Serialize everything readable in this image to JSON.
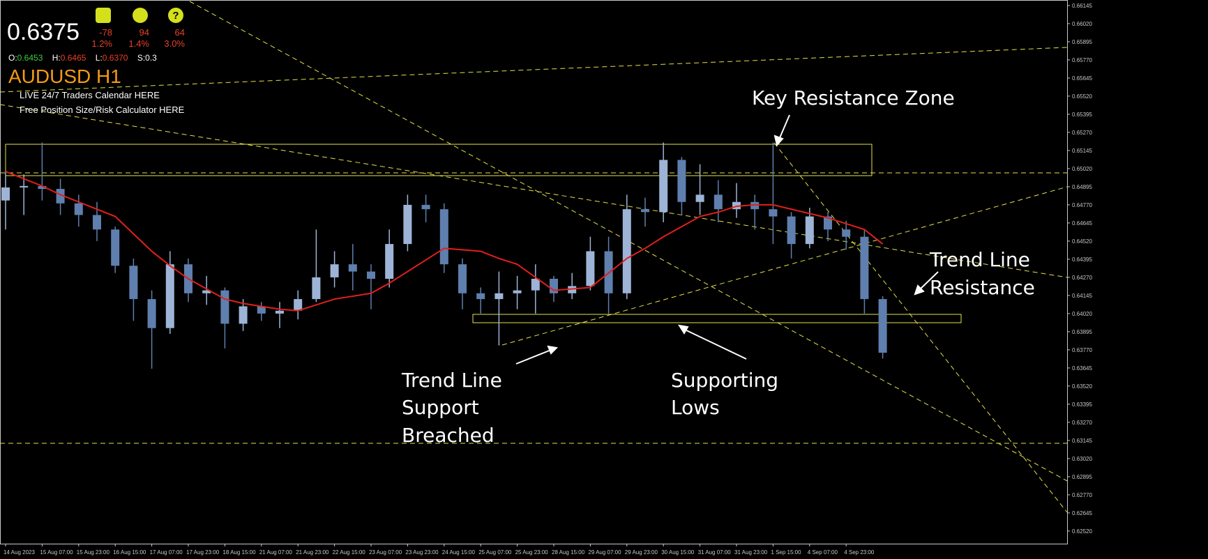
{
  "header": {
    "price": "0.6375",
    "stats": [
      {
        "points": "-78",
        "pct": "1.2%"
      },
      {
        "points": "94",
        "pct": "1.4%"
      },
      {
        "points": "64",
        "pct": "3.0%"
      }
    ],
    "open_label": "O:",
    "open": "0.6453",
    "high_label": "H:",
    "high": "0.6465",
    "low_label": "L:",
    "low": "0.6370",
    "spread_label": "S:",
    "spread": "0.3",
    "symbol": "AUDUSD H1",
    "links": [
      "LIVE 24/7 Traders Calendar HERE",
      "Free Position Size/Risk Calculator HERE"
    ]
  },
  "chart_data": {
    "type": "candlestick",
    "categories": [
      "14 Aug 2023",
      null,
      "15 Aug 07:00",
      null,
      "15 Aug 23:00",
      null,
      "16 Aug 15:00",
      null,
      "17 Aug 07:00",
      null,
      "17 Aug 23:00",
      null,
      "18 Aug 15:00",
      null,
      "21 Aug 07:00",
      null,
      "21 Aug 23:00",
      null,
      "22 Aug 15:00",
      null,
      "23 Aug 07:00",
      null,
      "23 Aug 23:00",
      null,
      "24 Aug 15:00",
      null,
      "25 Aug 07:00",
      null,
      "25 Aug 23:00",
      null,
      "28 Aug 15:00",
      null,
      "29 Aug 07:00",
      null,
      "29 Aug 23:00",
      null,
      "30 Aug 15:00",
      null,
      "31 Aug 07:00",
      null,
      "31 Aug 23:00",
      null,
      "1 Sep 15:00",
      null,
      "4 Sep 07:00",
      null,
      "4 Sep 23:00",
      null,
      null
    ],
    "open": [
      0.648,
      0.6489,
      0.649,
      0.6488,
      0.6478,
      0.647,
      0.646,
      0.6435,
      0.6412,
      0.6392,
      0.6436,
      0.6416,
      0.6418,
      0.6395,
      0.6407,
      0.6402,
      0.6404,
      0.6412,
      0.6427,
      0.6436,
      0.6431,
      0.6426,
      0.645,
      0.6477,
      0.6474,
      0.6436,
      0.6416,
      0.6412,
      0.6416,
      0.6418,
      0.6426,
      0.6416,
      0.6421,
      0.6445,
      0.6416,
      0.6474,
      0.6472,
      0.6508,
      0.6479,
      0.6484,
      0.6474,
      0.6479,
      0.6474,
      0.6469,
      0.645,
      0.6469,
      0.646,
      0.6455,
      0.6412
    ],
    "high": [
      0.65,
      0.6498,
      0.652,
      0.6495,
      0.6484,
      0.6479,
      0.6462,
      0.644,
      0.6418,
      0.6445,
      0.644,
      0.6428,
      0.642,
      0.6412,
      0.641,
      0.641,
      0.6418,
      0.646,
      0.6445,
      0.645,
      0.6436,
      0.646,
      0.6484,
      0.6484,
      0.6478,
      0.644,
      0.642,
      0.6431,
      0.6428,
      0.6436,
      0.6428,
      0.643,
      0.6455,
      0.6455,
      0.6484,
      0.6482,
      0.652,
      0.651,
      0.6505,
      0.6494,
      0.6492,
      0.6484,
      0.652,
      0.6472,
      0.6475,
      0.6472,
      0.6466,
      0.646,
      0.6414
    ],
    "low": [
      0.646,
      0.647,
      0.648,
      0.647,
      0.6462,
      0.6452,
      0.643,
      0.6397,
      0.6364,
      0.6388,
      0.641,
      0.6408,
      0.6378,
      0.639,
      0.6397,
      0.6392,
      0.6398,
      0.641,
      0.642,
      0.6418,
      0.6405,
      0.642,
      0.6445,
      0.6465,
      0.643,
      0.6405,
      0.6402,
      0.638,
      0.6405,
      0.6402,
      0.641,
      0.6412,
      0.6418,
      0.6402,
      0.6412,
      0.6462,
      0.6465,
      0.647,
      0.647,
      0.6465,
      0.6468,
      0.646,
      0.645,
      0.644,
      0.6447,
      0.6452,
      0.6446,
      0.6402,
      0.6371
    ],
    "close": [
      0.6489,
      0.649,
      0.6488,
      0.6478,
      0.647,
      0.646,
      0.6435,
      0.6412,
      0.6392,
      0.6436,
      0.6416,
      0.6418,
      0.6395,
      0.6407,
      0.6402,
      0.6404,
      0.6412,
      0.6427,
      0.6436,
      0.6431,
      0.6426,
      0.645,
      0.6477,
      0.6474,
      0.6436,
      0.6416,
      0.6412,
      0.6416,
      0.6418,
      0.6426,
      0.6416,
      0.6421,
      0.6445,
      0.6416,
      0.6474,
      0.6472,
      0.6508,
      0.6479,
      0.6484,
      0.6474,
      0.6479,
      0.6474,
      0.6469,
      0.645,
      0.6469,
      0.646,
      0.6455,
      0.6412,
      0.6375
    ],
    "up_color": "#9db4d6",
    "down_color": "#5f7fae",
    "ma": {
      "color": "#e0201b",
      "values": [
        0.65,
        0.6495,
        0.649,
        0.6484,
        0.6479,
        0.6474,
        0.6469,
        0.6457,
        0.6445,
        0.6435,
        0.6426,
        0.6419,
        0.6412,
        0.6409,
        0.6407,
        0.6405,
        0.6404,
        0.6408,
        0.6412,
        0.6414,
        0.6416,
        0.6423,
        0.6431,
        0.6439,
        0.6447,
        0.6446,
        0.6445,
        0.644,
        0.6436,
        0.6427,
        0.6418,
        0.6419,
        0.642,
        0.643,
        0.644,
        0.6447,
        0.6455,
        0.6462,
        0.6469,
        0.6472,
        0.6476,
        0.6477,
        0.6477,
        0.6474,
        0.6471,
        0.6468,
        0.6464,
        0.646,
        0.645
      ]
    },
    "ylim": [
      0.62433,
      0.66183
    ],
    "yticks": [
      0.66145,
      {
        "value": 0.6602,
        "label": "0.66020"
      },
      0.65895,
      {
        "value": 0.6577,
        "label": "0.65770"
      },
      0.65645,
      {
        "value": 0.6552,
        "label": "0.65520"
      },
      0.65395,
      {
        "value": 0.6527,
        "label": "0.65270"
      },
      0.65145,
      {
        "value": 0.6502,
        "label": "0.65020"
      },
      0.64895,
      {
        "value": 0.6477,
        "label": "0.64770"
      },
      0.64645,
      {
        "value": 0.6452,
        "label": "0.64520"
      },
      0.64395,
      {
        "value": 0.6427,
        "label": "0.64270"
      },
      0.64145,
      {
        "value": 0.6402,
        "label": "0.64020"
      },
      0.63895,
      {
        "value": 0.6377,
        "label": "0.63770"
      },
      0.63645,
      {
        "value": 0.6352,
        "label": "0.63520"
      },
      0.63395,
      {
        "value": 0.6327,
        "label": "0.63270"
      },
      0.63145,
      {
        "value": 0.6302,
        "label": "0.63020"
      },
      0.62895,
      {
        "value": 0.6277,
        "label": "0.62770"
      },
      0.62645,
      {
        "value": 0.6252,
        "label": "0.62520"
      }
    ],
    "annotations": [
      {
        "lines": [
          "Key Resistance Zone"
        ]
      },
      {
        "lines": [
          "Trend Line",
          "Resistance"
        ]
      },
      {
        "lines": [
          "Trend Line",
          "Support",
          "Breached"
        ]
      },
      {
        "lines": [
          "Supporting",
          "Lows"
        ]
      }
    ]
  }
}
